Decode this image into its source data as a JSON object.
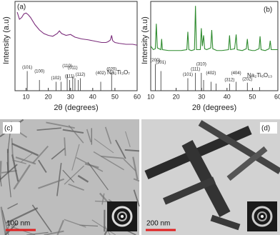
{
  "chart_data": [
    {
      "type": "line",
      "panel_label": "(a)",
      "y_label": "Intensity (a.u)",
      "x_label": "2θ (degrees)",
      "xlim": [
        5,
        60
      ],
      "xticks": [
        10,
        20,
        30,
        40,
        50,
        60
      ],
      "ylim": [
        0,
        100
      ],
      "series": [
        {
          "color": "#7b2d7b",
          "x": [
            6,
            7,
            8,
            9,
            10,
            11,
            12,
            14,
            16,
            18,
            20,
            22,
            24,
            25,
            26,
            28,
            30,
            32,
            35,
            38,
            40,
            42,
            44,
            46,
            47,
            48,
            48.5,
            49,
            50,
            52,
            55,
            58,
            60
          ],
          "values": [
            88,
            80,
            82,
            86,
            87,
            85,
            82,
            74,
            68,
            64,
            62,
            61,
            64,
            67,
            64,
            62,
            63,
            60,
            58,
            57,
            56,
            55,
            54,
            54,
            55,
            57,
            62,
            56,
            54,
            53,
            52,
            52,
            51
          ]
        }
      ],
      "reference": {
        "name": "Na₂Ti₃O₇",
        "color": "#333333",
        "x": [
          10.5,
          16,
          23.5,
          25.7,
          28.5,
          29.6,
          31,
          32,
          33.5,
          34.4,
          43.6,
          48.5
        ],
        "values": [
          22,
          12,
          10,
          10,
          18,
          12,
          16,
          14,
          12,
          14,
          10,
          20
        ]
      },
      "annotations": [
        {
          "text": "(101)",
          "x": 10.5
        },
        {
          "text": "(100)",
          "x": 16
        },
        {
          "text": "(102)",
          "x": 23.5
        },
        {
          "text": "(110)",
          "x": 28.5
        },
        {
          "text": "(111)",
          "x": 29.6
        },
        {
          "text": "(011)",
          "x": 31
        },
        {
          "text": "(112)",
          "x": 34.4
        },
        {
          "text": "(402)",
          "x": 43.6
        },
        {
          "text": "(020)",
          "x": 48.5
        }
      ]
    },
    {
      "type": "line",
      "panel_label": "(b)",
      "y_label": "Intensity (a.u)",
      "x_label": "2θ (degrees)",
      "xlim": [
        10,
        60
      ],
      "xticks": [
        10,
        20,
        30,
        40,
        50,
        60
      ],
      "ylim": [
        0,
        100
      ],
      "series": [
        {
          "color": "#2e8b2e",
          "x": [
            10,
            11,
            11.8,
            12.2,
            12.6,
            14,
            14.3,
            14.6,
            17,
            20,
            22,
            24.2,
            24.6,
            25,
            26,
            27.2,
            27.6,
            28,
            29.5,
            29.9,
            30.3,
            30.8,
            31.2,
            32,
            33.6,
            34,
            34.4,
            36,
            38,
            40.6,
            41,
            41.4,
            43,
            43.6,
            44,
            46,
            47.6,
            48,
            48.4,
            50,
            51,
            52.6,
            53,
            53.4,
            55,
            56.6,
            57,
            57.4,
            60
          ],
          "values": [
            50,
            46,
            47,
            75,
            48,
            46,
            58,
            46,
            45,
            45,
            45,
            46,
            66,
            46,
            45,
            46,
            95,
            46,
            46,
            70,
            50,
            62,
            47,
            46,
            48,
            68,
            47,
            45,
            45,
            46,
            62,
            46,
            47,
            63,
            46,
            45,
            47,
            58,
            46,
            45,
            45,
            47,
            61,
            46,
            45,
            47,
            56,
            46,
            46
          ]
        }
      ],
      "reference": {
        "name": "Na₂Ti₆O₁₃",
        "color": "#333333",
        "x": [
          11.8,
          14,
          24.6,
          27.6,
          29.9,
          30.8,
          33.7,
          35.7,
          41,
          43.6,
          48,
          52.8
        ],
        "values": [
          30,
          22,
          14,
          20,
          20,
          12,
          10,
          8,
          8,
          10,
          9,
          4
        ]
      },
      "annotations": [
        {
          "text": "(200)",
          "x": 11.8
        },
        {
          "text": "(201)",
          "x": 14
        },
        {
          "text": "(101)",
          "x": 24.6
        },
        {
          "text": "(310)",
          "x": 29.9
        },
        {
          "text": "(111)",
          "x": 27.6
        },
        {
          "text": "(402)",
          "x": 33.7
        },
        {
          "text": "(312)",
          "x": 41
        },
        {
          "text": "(404)",
          "x": 43.6
        },
        {
          "text": "(202)",
          "x": 48
        }
      ]
    }
  ],
  "images": [
    {
      "label": "(c)",
      "scale_bar": "100 nm"
    },
    {
      "label": "(d)",
      "scale_bar": "200 nm"
    }
  ]
}
